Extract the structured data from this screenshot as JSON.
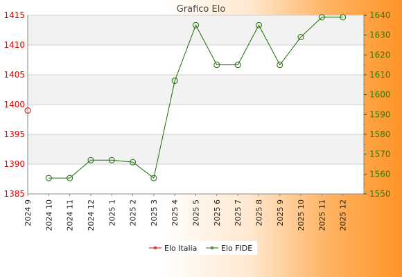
{
  "chart_data": {
    "type": "line",
    "title": "Grafico Elo",
    "categories": [
      "2024 9",
      "2024 10",
      "2024 11",
      "2024 12",
      "2025 1",
      "2025 2",
      "2025 3",
      "2025 4",
      "2025 5",
      "2025 6",
      "2025 7",
      "2025 8",
      "2025 9",
      "2025 10",
      "2025 11",
      "2025 12"
    ],
    "series": [
      {
        "name": "Elo Italia",
        "axis": "left",
        "color": "#dd0000",
        "values": [
          1399,
          null,
          null,
          null,
          null,
          null,
          null,
          null,
          null,
          null,
          null,
          null,
          null,
          null,
          null,
          null
        ]
      },
      {
        "name": "Elo FIDE",
        "axis": "right",
        "color": "#1a6e00",
        "values": [
          null,
          1558,
          1558,
          1567,
          1567,
          1566,
          1558,
          1607,
          1635,
          1615,
          1615,
          1635,
          1615,
          1629,
          1639,
          1639
        ]
      }
    ],
    "y_left": {
      "ylim": [
        1385,
        1415
      ],
      "ticks": [
        1385,
        1390,
        1395,
        1400,
        1405,
        1410,
        1415
      ],
      "color": "#dd0000"
    },
    "y_right": {
      "ylim": [
        1550,
        1640
      ],
      "ticks": [
        1550,
        1560,
        1570,
        1580,
        1590,
        1600,
        1610,
        1620,
        1630,
        1640
      ],
      "color": "#2e7d00"
    },
    "grid": true,
    "legend_position": "bottom-center"
  }
}
